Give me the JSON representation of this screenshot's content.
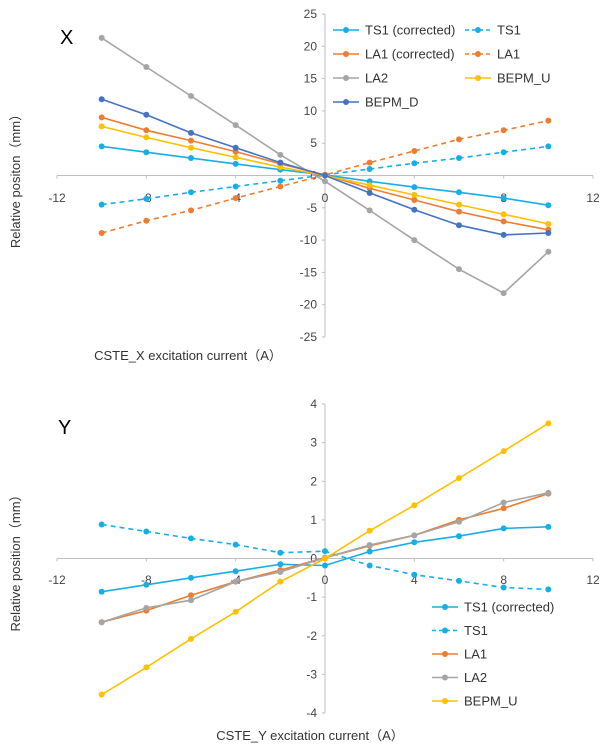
{
  "chart_data": [
    {
      "type": "line",
      "title": "X",
      "xlabel": "CSTE_X excitation current（A）",
      "ylabel": "Relative positon（mm）",
      "xlim": [
        -12,
        12
      ],
      "ylim": [
        -25,
        25
      ],
      "xticks": [
        -12,
        -8,
        -4,
        0,
        4,
        8,
        12
      ],
      "yticks": [
        -25,
        -20,
        -15,
        -10,
        -5,
        0,
        5,
        10,
        15,
        20,
        25
      ],
      "legend_position": "top-right",
      "series": [
        {
          "name": "TS1 (corrected)",
          "color": "#17aee8",
          "dash": "solid",
          "x": [
            -10,
            -8,
            -6,
            -4,
            -2,
            0,
            2,
            4,
            6,
            8,
            10
          ],
          "y": [
            4.5,
            3.6,
            2.7,
            1.8,
            0.9,
            0.1,
            -0.9,
            -1.8,
            -2.6,
            -3.5,
            -4.6
          ]
        },
        {
          "name": "TS1",
          "color": "#17aee8",
          "dash": "dashed",
          "x": [
            -10,
            -8,
            -6,
            -4,
            -2,
            0,
            2,
            4,
            6,
            8,
            10
          ],
          "y": [
            -4.5,
            -3.6,
            -2.6,
            -1.7,
            -0.8,
            0.1,
            1.0,
            1.9,
            2.7,
            3.6,
            4.5
          ]
        },
        {
          "name": "LA1 (corrected)",
          "color": "#ed7d31",
          "dash": "solid",
          "x": [
            -10,
            -8,
            -6,
            -4,
            -2,
            0,
            2,
            4,
            6,
            8,
            10
          ],
          "y": [
            9.0,
            7.0,
            5.4,
            3.7,
            1.8,
            0.1,
            -2.0,
            -3.8,
            -5.6,
            -7.1,
            -8.4
          ]
        },
        {
          "name": "LA1",
          "color": "#ed7d31",
          "dash": "dashed",
          "x": [
            -10,
            -8,
            -6,
            -4,
            -2,
            0,
            2,
            4,
            6,
            8,
            10
          ],
          "y": [
            -8.9,
            -7.0,
            -5.4,
            -3.5,
            -1.7,
            0.1,
            2.0,
            3.8,
            5.6,
            7.0,
            8.5
          ]
        },
        {
          "name": "LA2",
          "color": "#a5a5a5",
          "dash": "solid",
          "x": [
            -10,
            -8,
            -6,
            -4,
            -2,
            0,
            2,
            4,
            6,
            8,
            10
          ],
          "y": [
            21.3,
            16.8,
            12.3,
            7.8,
            3.2,
            -0.9,
            -5.4,
            -10.0,
            -14.5,
            -18.2,
            -11.8
          ]
        },
        {
          "name": "BEPM_U",
          "color": "#ffc000",
          "dash": "solid",
          "x": [
            -10,
            -8,
            -6,
            -4,
            -2,
            0,
            2,
            4,
            6,
            8,
            10
          ],
          "y": [
            7.6,
            5.9,
            4.3,
            2.8,
            1.3,
            0.0,
            -1.5,
            -3.0,
            -4.5,
            -6.0,
            -7.5
          ]
        },
        {
          "name": "BEPM_D",
          "color": "#4472c4",
          "dash": "solid",
          "x": [
            -10,
            -8,
            -6,
            -4,
            -2,
            0,
            2,
            4,
            6,
            8,
            10
          ],
          "y": [
            11.8,
            9.4,
            6.6,
            4.3,
            2.0,
            0.0,
            -2.7,
            -5.3,
            -7.7,
            -9.2,
            -8.9
          ]
        }
      ]
    },
    {
      "type": "line",
      "title": "Y",
      "xlabel": "CSTE_Y excitation current（A）",
      "ylabel": "Relative position（mm）",
      "xlim": [
        -12,
        12
      ],
      "ylim": [
        -4,
        4
      ],
      "xticks": [
        -12,
        -8,
        -4,
        0,
        4,
        8,
        12
      ],
      "yticks": [
        -4,
        -3,
        -2,
        -1,
        0,
        1,
        2,
        3,
        4
      ],
      "legend_position": "bottom-right",
      "series": [
        {
          "name": "TS1 (corrected)",
          "color": "#17aee8",
          "dash": "solid",
          "x": [
            -10,
            -8,
            -6,
            -4,
            -2,
            0,
            2,
            4,
            6,
            8,
            10
          ],
          "y": [
            -0.86,
            -0.68,
            -0.5,
            -0.33,
            -0.15,
            -0.18,
            0.18,
            0.42,
            0.58,
            0.78,
            0.82
          ]
        },
        {
          "name": "TS1",
          "color": "#17aee8",
          "dash": "dashed",
          "x": [
            -10,
            -8,
            -6,
            -4,
            -2,
            0,
            2,
            4,
            6,
            8,
            10
          ],
          "y": [
            0.88,
            0.7,
            0.52,
            0.36,
            0.15,
            0.19,
            -0.18,
            -0.42,
            -0.58,
            -0.75,
            -0.8
          ]
        },
        {
          "name": "LA1",
          "color": "#ed7d31",
          "dash": "solid",
          "x": [
            -10,
            -8,
            -6,
            -4,
            -2,
            0,
            2,
            4,
            6,
            8,
            10
          ],
          "y": [
            -1.65,
            -1.35,
            -0.95,
            -0.6,
            -0.3,
            0.02,
            0.33,
            0.6,
            1.0,
            1.3,
            1.68
          ]
        },
        {
          "name": "LA2",
          "color": "#a5a5a5",
          "dash": "solid",
          "x": [
            -10,
            -8,
            -6,
            -4,
            -2,
            0,
            2,
            4,
            6,
            8,
            10
          ],
          "y": [
            -1.65,
            -1.28,
            -1.08,
            -0.6,
            -0.35,
            0.02,
            0.35,
            0.6,
            0.95,
            1.45,
            1.7
          ]
        },
        {
          "name": "BEPM_U",
          "color": "#ffc000",
          "dash": "solid",
          "x": [
            -10,
            -8,
            -6,
            -4,
            -2,
            0,
            2,
            4,
            6,
            8,
            10
          ],
          "y": [
            -3.52,
            -2.82,
            -2.08,
            -1.38,
            -0.6,
            0.0,
            0.72,
            1.38,
            2.08,
            2.78,
            3.5
          ]
        }
      ]
    }
  ]
}
